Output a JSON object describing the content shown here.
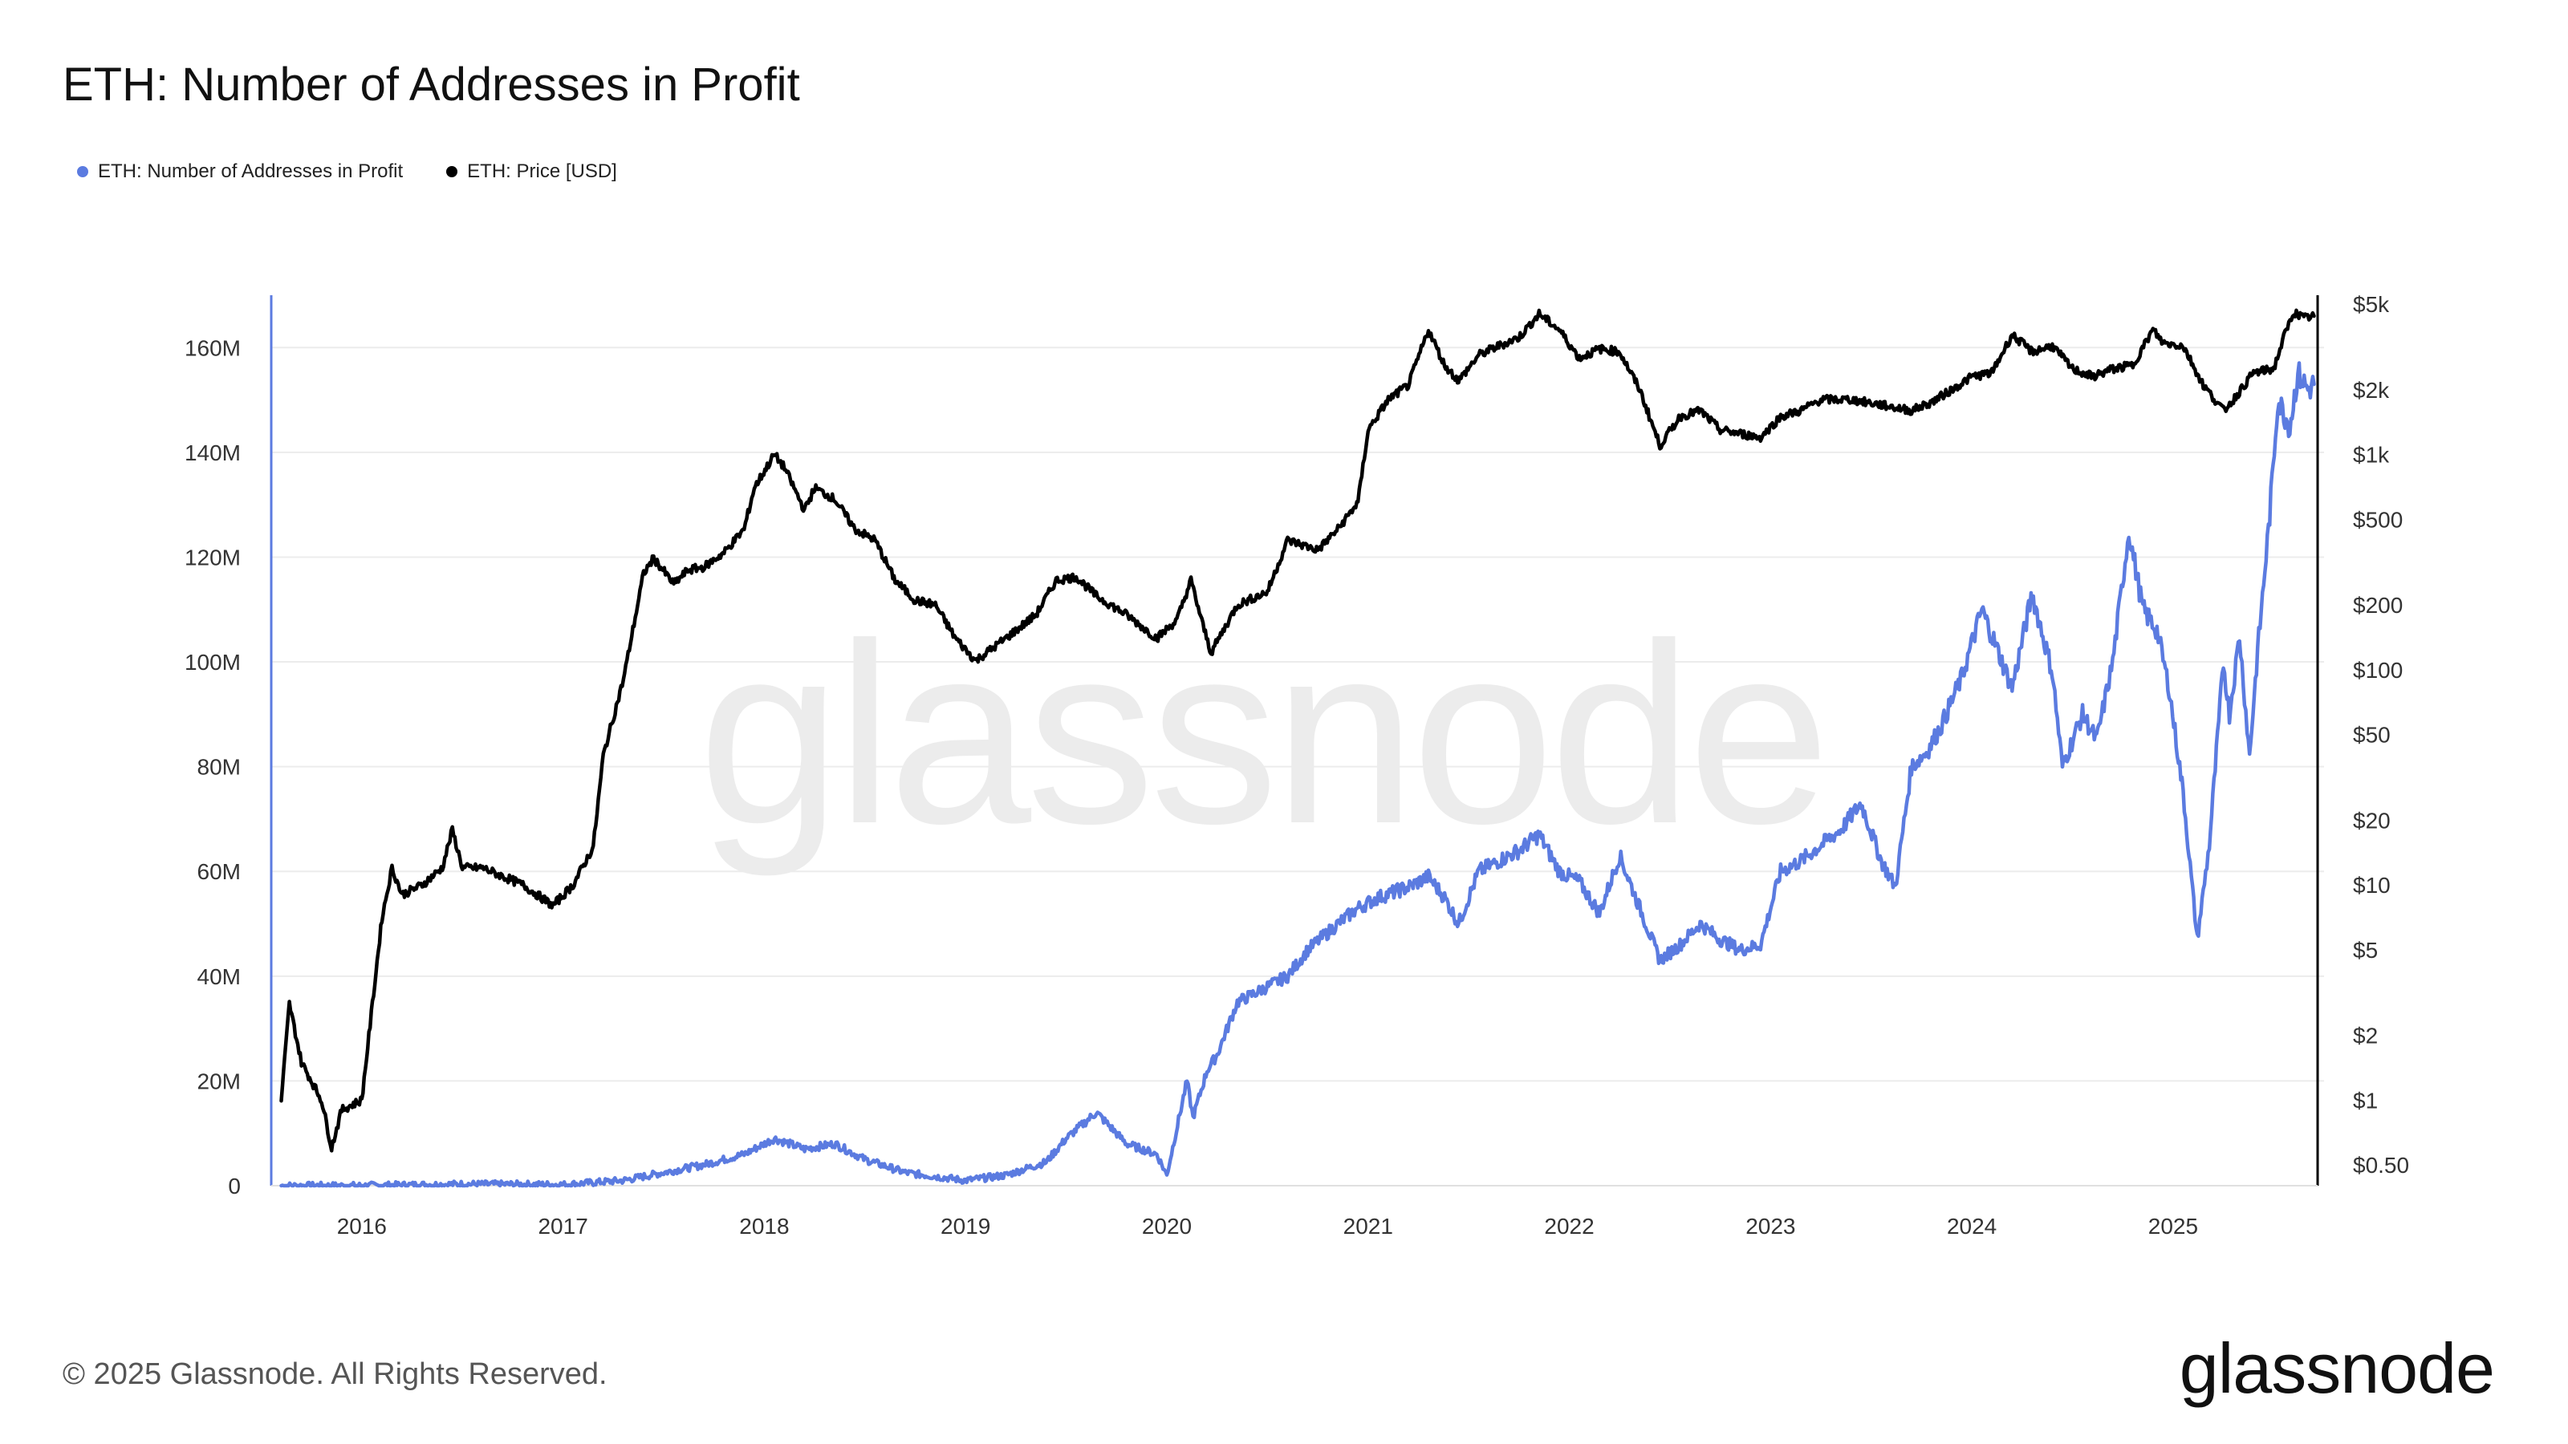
{
  "title": "ETH: Number of Addresses in Profit",
  "legend": [
    {
      "label": "ETH: Number of Addresses in Profit",
      "color": "#5b7be0"
    },
    {
      "label": "ETH: Price [USD]",
      "color": "#000000"
    }
  ],
  "footer": "© 2025 Glassnode. All Rights Reserved.",
  "logo": "glassnode",
  "watermark": "glassnode",
  "chart_data": {
    "type": "line",
    "title": "ETH: Number of Addresses in Profit",
    "x_ticks": [
      "2016",
      "2017",
      "2018",
      "2019",
      "2020",
      "2021",
      "2022",
      "2023",
      "2024",
      "2025"
    ],
    "x_range": [
      2015.55,
      2025.75
    ],
    "y_left": {
      "ticks": [
        "0",
        "20M",
        "40M",
        "60M",
        "80M",
        "100M",
        "120M",
        "140M",
        "160M"
      ],
      "ylim": [
        0,
        170000000
      ],
      "scale": "linear"
    },
    "y_right": {
      "ticks": [
        "$0.50",
        "$1",
        "$2",
        "$5",
        "$10",
        "$20",
        "$50",
        "$100",
        "$200",
        "$500",
        "$1k",
        "$2k",
        "$5k"
      ],
      "tick_values": [
        0.5,
        1,
        2,
        5,
        10,
        20,
        50,
        100,
        200,
        500,
        1000,
        2000,
        5000
      ],
      "ylim": [
        0.4,
        5500
      ],
      "scale": "log"
    },
    "grid": true,
    "legend_position": "top-left",
    "series": [
      {
        "name": "ETH: Number of Addresses in Profit",
        "axis": "left",
        "color": "#5b7be0",
        "x": [
          2015.6,
          2016.0,
          2016.5,
          2017.0,
          2017.3,
          2017.5,
          2017.7,
          2017.9,
          2018.05,
          2018.2,
          2018.35,
          2018.5,
          2018.7,
          2018.9,
          2019.0,
          2019.2,
          2019.4,
          2019.5,
          2019.65,
          2019.8,
          2019.95,
          2020.0,
          2020.1,
          2020.13,
          2020.2,
          2020.25,
          2020.35,
          2020.5,
          2020.6,
          2020.7,
          2020.85,
          2020.95,
          2021.05,
          2021.2,
          2021.3,
          2021.38,
          2021.45,
          2021.55,
          2021.65,
          2021.75,
          2021.85,
          2021.95,
          2022.05,
          2022.15,
          2022.25,
          2022.35,
          2022.45,
          2022.55,
          2022.65,
          2022.75,
          2022.85,
          2022.95,
          2023.05,
          2023.15,
          2023.25,
          2023.35,
          2023.45,
          2023.55,
          2023.62,
          2023.7,
          2023.78,
          2023.85,
          2023.95,
          2024.05,
          2024.15,
          2024.2,
          2024.3,
          2024.4,
          2024.45,
          2024.55,
          2024.62,
          2024.7,
          2024.78,
          2024.85,
          2024.92,
          2024.98,
          2025.05,
          2025.12,
          2025.18,
          2025.25,
          2025.28,
          2025.33,
          2025.38,
          2025.42,
          2025.48,
          2025.52,
          2025.58,
          2025.62,
          2025.67,
          2025.7
        ],
        "values": [
          0,
          0,
          300000,
          200000,
          1000000,
          2500000,
          4000000,
          6000000,
          9000000,
          7000000,
          8000000,
          5000000,
          2500000,
          1500000,
          1000000,
          2000000,
          4500000,
          9000000,
          14000000,
          8000000,
          6000000,
          2000000,
          20000000,
          13000000,
          22000000,
          25000000,
          35000000,
          38000000,
          40000000,
          45000000,
          50000000,
          53000000,
          55000000,
          57000000,
          59000000,
          55000000,
          50000000,
          60000000,
          62000000,
          64000000,
          67000000,
          60000000,
          58000000,
          52000000,
          63000000,
          53000000,
          43000000,
          46000000,
          50000000,
          47000000,
          45000000,
          46000000,
          60000000,
          62000000,
          65000000,
          68000000,
          73000000,
          62000000,
          57000000,
          80000000,
          83000000,
          88000000,
          97000000,
          110000000,
          100000000,
          95000000,
          113000000,
          98000000,
          80000000,
          90000000,
          85000000,
          100000000,
          125000000,
          110000000,
          106000000,
          95000000,
          75000000,
          47000000,
          65000000,
          100000000,
          90000000,
          105000000,
          82000000,
          102000000,
          128000000,
          150000000,
          145000000,
          155000000,
          152000000,
          153000000
        ]
      },
      {
        "name": "ETH: Price [USD]",
        "axis": "right",
        "color": "#000000",
        "x": [
          2015.6,
          2015.64,
          2015.7,
          2015.8,
          2015.85,
          2015.9,
          2016.0,
          2016.1,
          2016.15,
          2016.2,
          2016.3,
          2016.4,
          2016.45,
          2016.5,
          2016.6,
          2016.8,
          2016.95,
          2017.05,
          2017.15,
          2017.2,
          2017.3,
          2017.4,
          2017.45,
          2017.55,
          2017.62,
          2017.7,
          2017.8,
          2017.9,
          2017.95,
          2018.05,
          2018.1,
          2018.2,
          2018.25,
          2018.35,
          2018.45,
          2018.55,
          2018.65,
          2018.75,
          2018.85,
          2018.95,
          2019.05,
          2019.2,
          2019.35,
          2019.45,
          2019.55,
          2019.65,
          2019.8,
          2019.95,
          2020.05,
          2020.12,
          2020.18,
          2020.22,
          2020.35,
          2020.5,
          2020.6,
          2020.75,
          2020.85,
          2020.95,
          2021.0,
          2021.1,
          2021.2,
          2021.3,
          2021.38,
          2021.45,
          2021.55,
          2021.65,
          2021.75,
          2021.85,
          2021.95,
          2022.05,
          2022.15,
          2022.25,
          2022.35,
          2022.45,
          2022.55,
          2022.65,
          2022.75,
          2022.85,
          2022.95,
          2023.05,
          2023.15,
          2023.25,
          2023.4,
          2023.55,
          2023.7,
          2023.8,
          2023.9,
          2024.0,
          2024.1,
          2024.2,
          2024.3,
          2024.4,
          2024.5,
          2024.6,
          2024.7,
          2024.8,
          2024.9,
          2024.95,
          2025.05,
          2025.15,
          2025.25,
          2025.3,
          2025.4,
          2025.5,
          2025.55,
          2025.6,
          2025.65,
          2025.7
        ],
        "values": [
          1.0,
          2.8,
          1.5,
          1.0,
          0.6,
          0.9,
          1.0,
          7.0,
          12.0,
          9.0,
          10.0,
          12.0,
          18.0,
          12.0,
          12.0,
          10.0,
          8.0,
          10.0,
          15.0,
          40.0,
          90.0,
          280.0,
          330.0,
          250.0,
          290.0,
          300.0,
          350.0,
          450.0,
          700.0,
          1000.0,
          870.0,
          550.0,
          700.0,
          620.0,
          450.0,
          400.0,
          260.0,
          210.0,
          200.0,
          140.0,
          110.0,
          140.0,
          180.0,
          260.0,
          270.0,
          220.0,
          180.0,
          140.0,
          170.0,
          260.0,
          160.0,
          120.0,
          200.0,
          230.0,
          400.0,
          360.0,
          450.0,
          600.0,
          1300.0,
          1800.0,
          2100.0,
          3800.0,
          2600.0,
          2200.0,
          2900.0,
          3200.0,
          3500.0,
          4500.0,
          3800.0,
          2800.0,
          3100.0,
          3000.0,
          2000.0,
          1100.0,
          1500.0,
          1600.0,
          1300.0,
          1250.0,
          1200.0,
          1500.0,
          1600.0,
          1800.0,
          1800.0,
          1700.0,
          1600.0,
          1750.0,
          2000.0,
          2300.0,
          2400.0,
          3600.0,
          3000.0,
          3200.0,
          2500.0,
          2300.0,
          2500.0,
          2600.0,
          3800.0,
          3300.0,
          3200.0,
          2100.0,
          1600.0,
          1800.0,
          2400.0,
          2500.0,
          3500.0,
          4600.0,
          4300.0,
          4400.0
        ]
      }
    ]
  }
}
